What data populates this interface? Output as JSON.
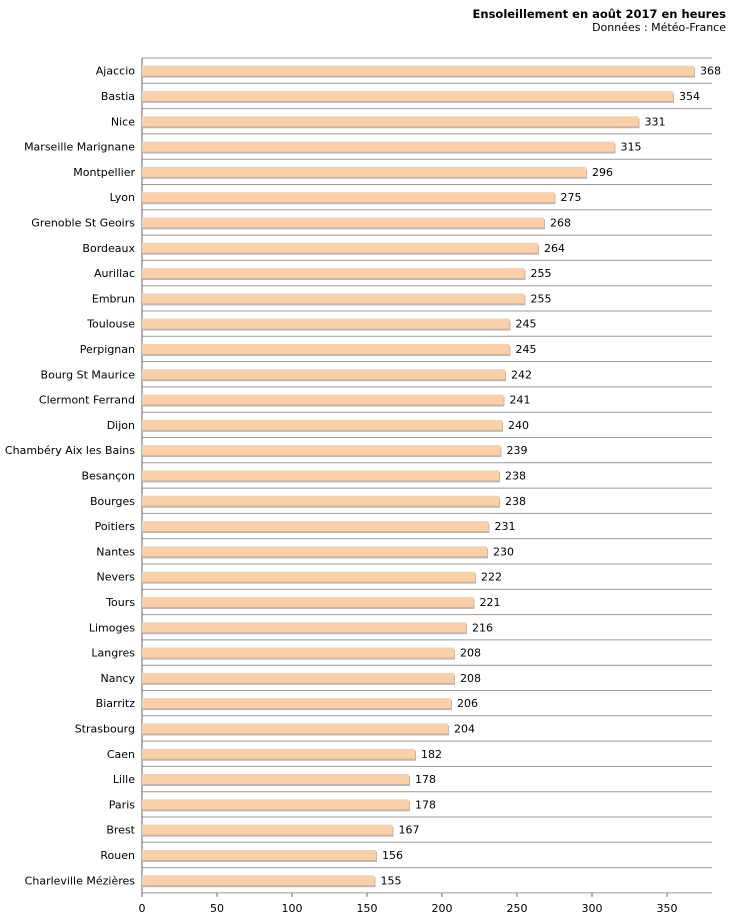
{
  "chart_data": {
    "type": "bar",
    "orientation": "horizontal",
    "title": "Ensoleillement en août 2017 en heures",
    "subtitle": "Données : Météo-France",
    "xlabel": "",
    "ylabel": "",
    "xlim": [
      0,
      380
    ],
    "ticks": [
      0,
      50,
      100,
      150,
      200,
      250,
      300,
      350
    ],
    "bar_color": "#fbcfa8",
    "categories": [
      "Ajaccio",
      "Bastia",
      "Nice",
      "Marseille Marignane",
      "Montpellier",
      "Lyon",
      "Grenoble St Geoirs",
      "Bordeaux",
      "Aurillac",
      "Embrun",
      "Toulouse",
      "Perpignan",
      "Bourg St Maurice",
      "Clermont Ferrand",
      "Dijon",
      "Chambéry Aix les Bains",
      "Besançon",
      "Bourges",
      "Poitiers",
      "Nantes",
      "Nevers",
      "Tours",
      "Limoges",
      "Langres",
      "Nancy",
      "Biarritz",
      "Strasbourg",
      "Caen",
      "Lille",
      "Paris",
      "Brest",
      "Rouen",
      "Charleville Mézières"
    ],
    "values": [
      368,
      354,
      331,
      315,
      296,
      275,
      268,
      264,
      255,
      255,
      245,
      245,
      242,
      241,
      240,
      239,
      238,
      238,
      231,
      230,
      222,
      221,
      216,
      208,
      208,
      206,
      204,
      182,
      178,
      178,
      167,
      156,
      155
    ]
  }
}
